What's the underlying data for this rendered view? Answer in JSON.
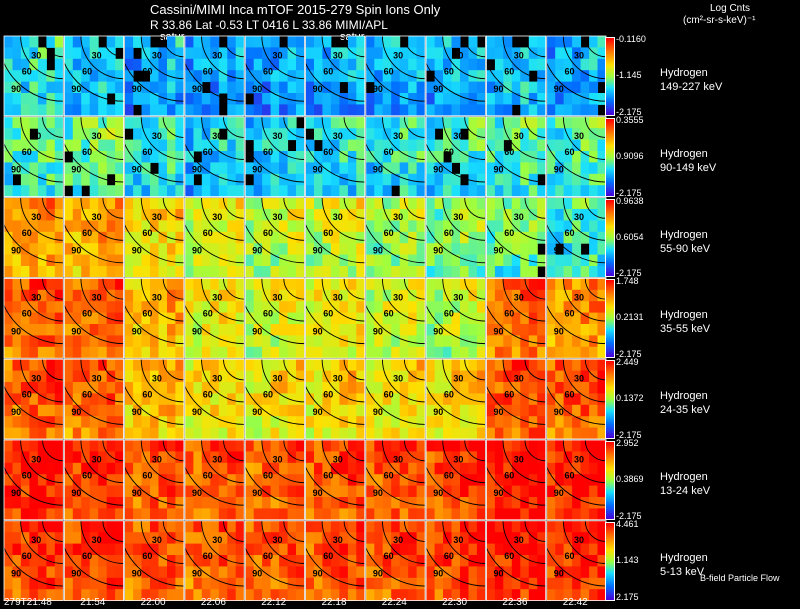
{
  "header": {
    "title_line1": "Cassini/MIMI Inca mTOF  2015-279   Spin   Ions Only",
    "title_line2": "R        33.86 Lat -0.53 LT 0416 L        33.86  MIMI/APL",
    "units_line1": "Log Cnts",
    "units_line2": "(cm²-sr-s-keV)⁻¹",
    "satur_label_1": "satur",
    "satur_label_2": "satur",
    "footer_note": "B-field Particle Flow"
  },
  "chart_data": {
    "type": "heatmap",
    "x_labels": [
      "279T21:48",
      "21:54",
      "22:00",
      "22:06",
      "22:12",
      "22:18",
      "22:24",
      "22:30",
      "22:36",
      "22:42"
    ],
    "contour_labels": [
      "30",
      "60",
      "90"
    ],
    "channels": [
      {
        "species": "Hydrogen",
        "energy": "149-227 keV",
        "cbar_max": "-0.1160",
        "cbar_mid": "-1.145",
        "cbar_min": "-2.175",
        "levels": [
          0.3,
          0.25,
          0.2,
          0.18,
          0.18,
          0.2,
          0.22,
          0.22,
          0.25,
          0.2
        ]
      },
      {
        "species": "Hydrogen",
        "energy": "90-149 keV",
        "cbar_max": "0.3555",
        "cbar_mid": "0.9096",
        "cbar_min": "-2.175",
        "levels": [
          0.35,
          0.38,
          0.3,
          0.25,
          0.25,
          0.28,
          0.3,
          0.32,
          0.35,
          0.33
        ]
      },
      {
        "species": "Hydrogen",
        "energy": "55-90 keV",
        "cbar_max": "0.9638",
        "cbar_mid": "0.6054",
        "cbar_min": "-2.175",
        "levels": [
          0.7,
          0.68,
          0.58,
          0.52,
          0.48,
          0.5,
          0.45,
          0.42,
          0.38,
          0.33
        ]
      },
      {
        "species": "Hydrogen",
        "energy": "35-55 keV",
        "cbar_max": "1.748",
        "cbar_mid": "0.2131",
        "cbar_min": "-2.175",
        "levels": [
          0.8,
          0.78,
          0.65,
          0.55,
          0.52,
          0.55,
          0.5,
          0.48,
          0.78,
          0.7
        ]
      },
      {
        "species": "Hydrogen",
        "energy": "24-35 keV",
        "cbar_max": "2.449",
        "cbar_mid": "0.1372",
        "cbar_min": "-2.175",
        "levels": [
          0.8,
          0.78,
          0.65,
          0.58,
          0.58,
          0.6,
          0.58,
          0.6,
          0.82,
          0.8
        ]
      },
      {
        "species": "Hydrogen",
        "energy": "13-24 keV",
        "cbar_max": "2.952",
        "cbar_mid": "0.3869",
        "cbar_min": "-2.175",
        "levels": [
          0.9,
          0.85,
          0.82,
          0.8,
          0.8,
          0.82,
          0.82,
          0.85,
          0.92,
          0.9
        ]
      },
      {
        "species": "Hydrogen",
        "energy": "5-13 keV",
        "cbar_max": "4.461",
        "cbar_mid": "1.143",
        "cbar_min": "2.175",
        "levels": [
          0.85,
          0.85,
          0.8,
          0.8,
          0.8,
          0.82,
          0.82,
          0.85,
          0.9,
          0.88
        ]
      }
    ]
  }
}
